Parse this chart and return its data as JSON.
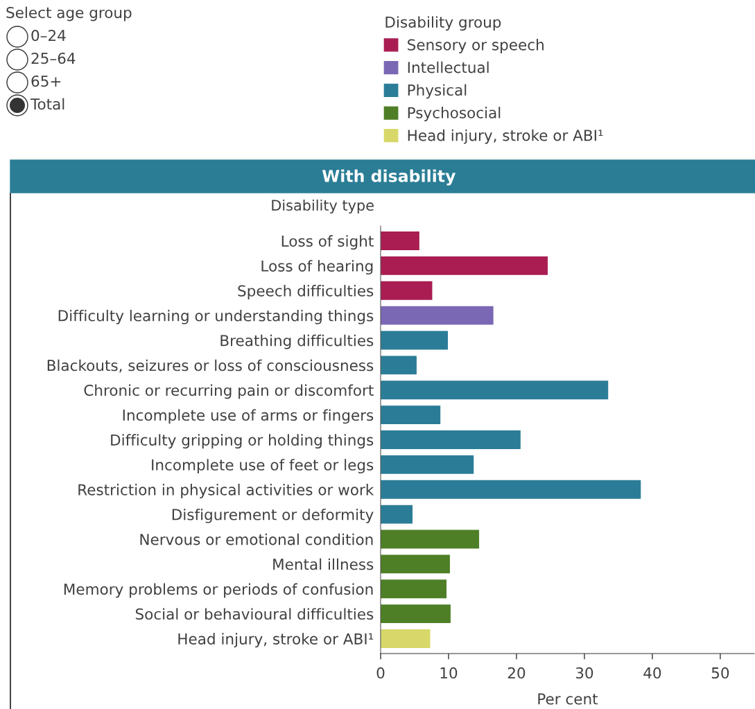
{
  "chart_data": {
    "type": "bar",
    "orientation": "horizontal",
    "title": "With disability",
    "ylabel": "Disability type",
    "xlabel": "Per cent",
    "legend_title": "Disability group",
    "legend": "top",
    "categories": [
      "Loss of sight",
      "Loss of hearing",
      "Speech difficulties",
      "Difficulty learning or understanding things",
      "Breathing difficulties",
      "Blackouts, seizures or loss of consciousness",
      "Chronic or recurring pain or discomfort",
      "Incomplete use of arms or fingers",
      "Difficulty gripping or holding things",
      "Incomplete use of feet or legs",
      "Restriction in physical activities or work",
      "Disfigurement or deformity",
      "Nervous or emotional condition",
      "Mental illness",
      "Memory problems or periods of confusion",
      "Social or behavioural difficulties",
      "Head injury, stroke or ABI¹"
    ],
    "series": [
      {
        "name": "Sensory or speech",
        "color": "#a91d53",
        "values": [
          5.7,
          24.6,
          7.6,
          null,
          null,
          null,
          null,
          null,
          null,
          null,
          null,
          null,
          null,
          null,
          null,
          null,
          null
        ]
      },
      {
        "name": "Intellectual",
        "color": "#7b68b4",
        "values": [
          null,
          null,
          null,
          16.6,
          null,
          null,
          null,
          null,
          null,
          null,
          null,
          null,
          null,
          null,
          null,
          null,
          null
        ]
      },
      {
        "name": "Physical",
        "color": "#2b7d97",
        "values": [
          null,
          null,
          null,
          null,
          9.9,
          5.3,
          33.5,
          8.8,
          20.6,
          13.7,
          38.3,
          4.7,
          null,
          null,
          null,
          null,
          null
        ]
      },
      {
        "name": "Psychosocial",
        "color": "#4e7f26",
        "values": [
          null,
          null,
          null,
          null,
          null,
          null,
          null,
          null,
          null,
          null,
          null,
          null,
          14.5,
          10.2,
          9.7,
          10.3,
          null
        ]
      },
      {
        "name": "Head injury, stroke or ABI¹",
        "color": "#d8d86a",
        "values": [
          null,
          null,
          null,
          null,
          null,
          null,
          null,
          null,
          null,
          null,
          null,
          null,
          null,
          null,
          null,
          null,
          7.3
        ]
      }
    ],
    "xlim": [
      0,
      55
    ],
    "xticks": [
      0,
      10,
      20,
      30,
      40,
      50
    ],
    "grid": false,
    "annotations": [
      "Select age group",
      "0–24",
      "25–64",
      "65+",
      "Total"
    ]
  }
}
